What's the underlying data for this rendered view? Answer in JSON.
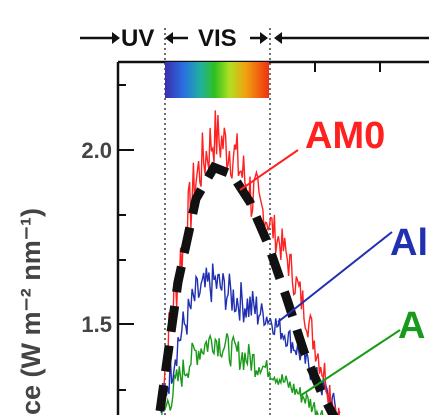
{
  "chart_data": {
    "type": "line",
    "regions": {
      "uv_label": "UV",
      "vis_label": "VIS"
    },
    "ylabel": "ce (W m⁻² nm⁻¹)",
    "y_ticks": [
      "2.0",
      "1.5"
    ],
    "ylim": [
      1.2,
      2.2
    ],
    "grid": false,
    "series": [
      {
        "name": "AM0",
        "color": "#ff2020",
        "x": [
          0.0,
          0.1,
          0.2,
          0.3,
          0.4,
          0.5,
          0.6,
          0.7,
          0.8,
          0.9,
          1.0
        ],
        "values": [
          1.28,
          1.65,
          1.92,
          2.04,
          2.0,
          1.88,
          1.8,
          1.7,
          1.55,
          1.38,
          1.22
        ]
      },
      {
        "name": "Al",
        "color": "#2030b0",
        "x": [
          0.0,
          0.1,
          0.2,
          0.3,
          0.4,
          0.5,
          0.6,
          0.7,
          0.8,
          0.9,
          1.0
        ],
        "values": [
          1.25,
          1.45,
          1.58,
          1.62,
          1.58,
          1.55,
          1.52,
          1.47,
          1.4,
          1.32,
          1.24
        ]
      },
      {
        "name": "A",
        "color": "#1a9a1a",
        "x": [
          0.0,
          0.1,
          0.2,
          0.3,
          0.4,
          0.5,
          0.6,
          0.7,
          0.8,
          0.9,
          1.0
        ],
        "values": [
          1.22,
          1.34,
          1.42,
          1.46,
          1.42,
          1.4,
          1.37,
          1.33,
          1.29,
          1.24,
          1.2
        ]
      },
      {
        "name": "",
        "color": "#111111",
        "dash": true,
        "x": [
          0.0,
          0.1,
          0.2,
          0.3,
          0.4,
          0.5,
          0.6,
          0.7,
          0.8,
          0.9,
          1.0
        ],
        "values": [
          1.25,
          1.62,
          1.86,
          1.95,
          1.93,
          1.85,
          1.73,
          1.58,
          1.42,
          1.3,
          1.2
        ]
      }
    ],
    "spectrum_bar_colors": [
      "#3b2fb0",
      "#2a6fe0",
      "#1fb0a0",
      "#30c020",
      "#b0e020",
      "#f0a010",
      "#f03010"
    ]
  }
}
